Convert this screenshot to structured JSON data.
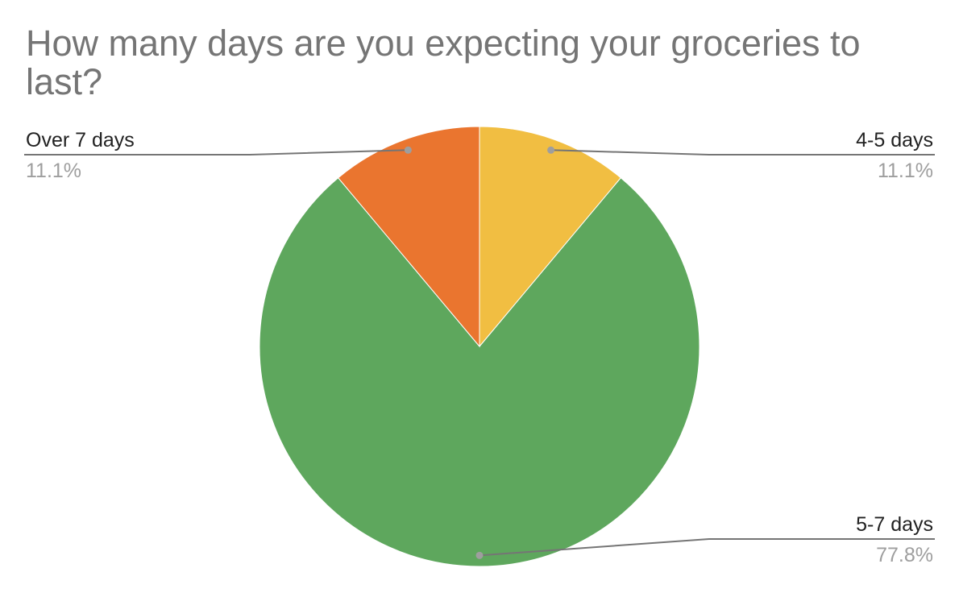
{
  "chart_data": {
    "type": "pie",
    "title": "How many days are you expecting your groceries to last?",
    "slices": [
      {
        "label": "4-5 days",
        "value": 11.1,
        "percent_label": "11.1%",
        "color": "#f1be42"
      },
      {
        "label": "5-7 days",
        "value": 77.8,
        "percent_label": "77.8%",
        "color": "#5ea75d"
      },
      {
        "label": "Over 7 days",
        "value": 11.1,
        "percent_label": "11.1%",
        "color": "#ea752f"
      }
    ],
    "start_angle": "12 o'clock, clockwise",
    "leader_line_color": "#757575",
    "leader_dot_color": "#9e9e9e",
    "legend": "none",
    "labels": "outside with leader lines"
  }
}
